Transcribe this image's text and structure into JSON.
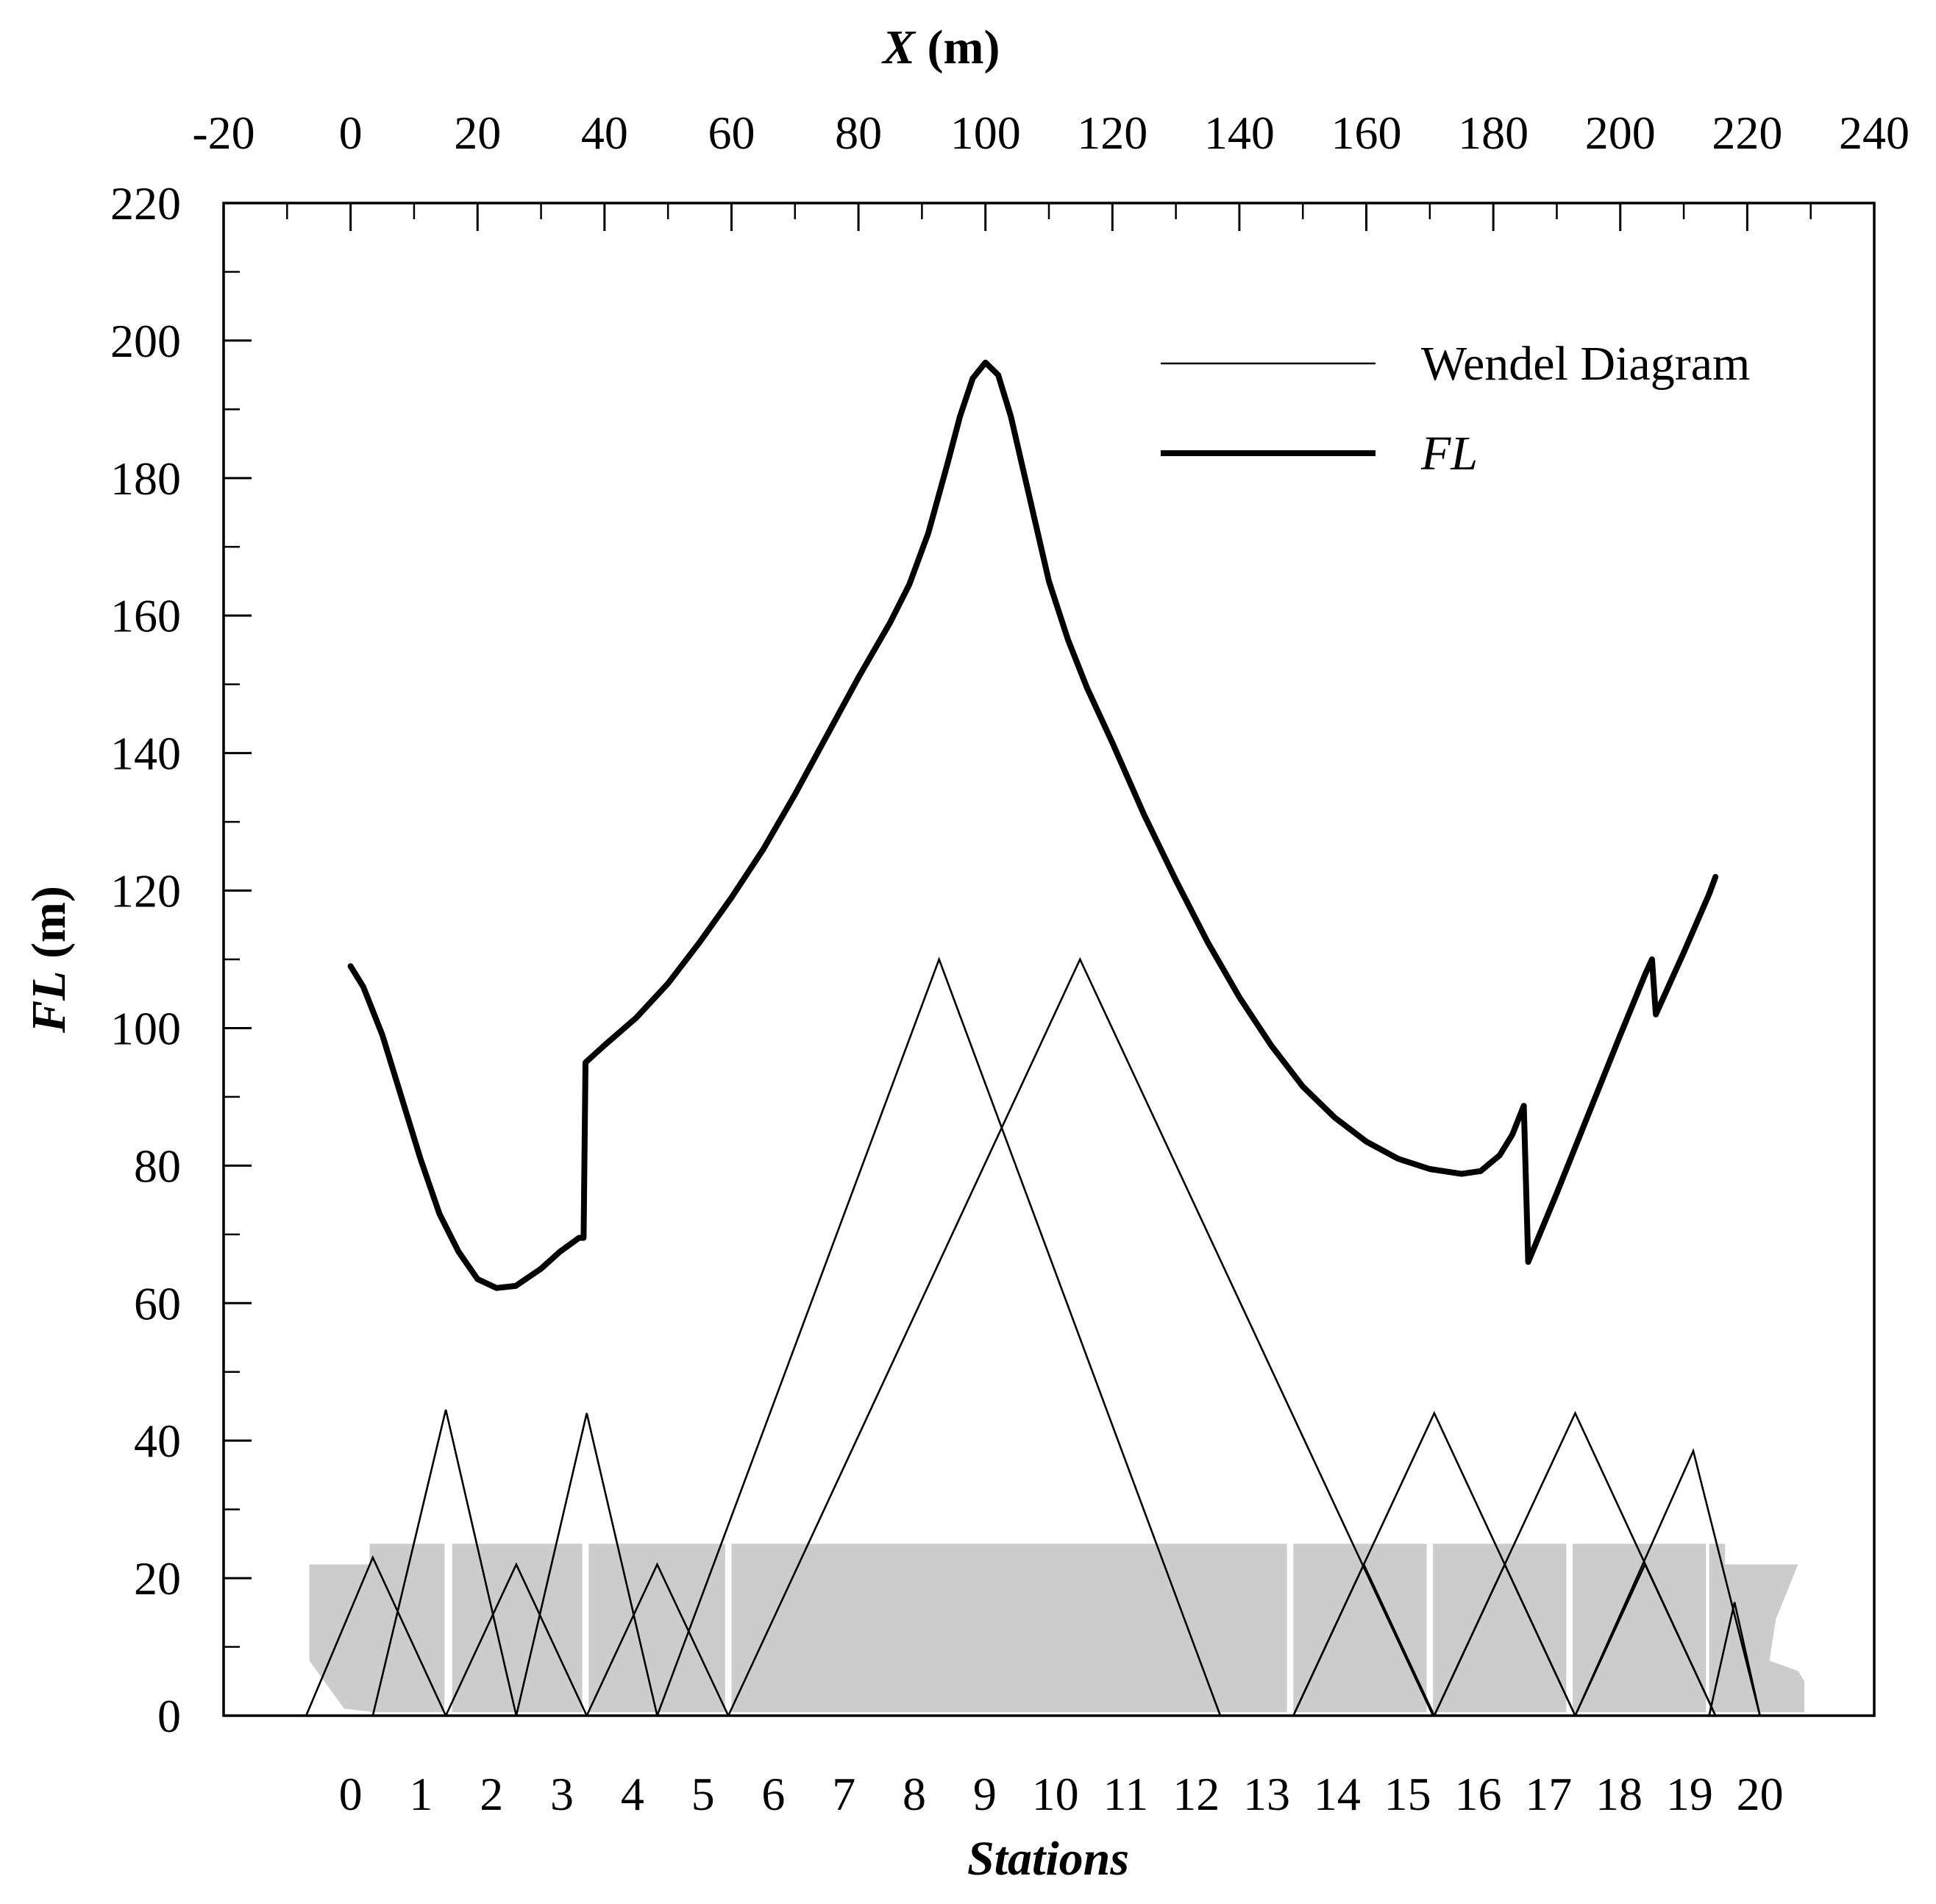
{
  "chart_data": {
    "type": "line",
    "top_axis": {
      "title_var": "X",
      "title_unit": " (m)",
      "range": [
        -20,
        240
      ],
      "ticks": [
        -20,
        0,
        20,
        40,
        60,
        80,
        100,
        120,
        140,
        160,
        180,
        200,
        220,
        240
      ]
    },
    "y_axis": {
      "title_var": "FL",
      "title_unit": " (m)",
      "range": [
        0,
        220
      ],
      "ticks": [
        0,
        20,
        40,
        60,
        80,
        100,
        120,
        140,
        160,
        180,
        200,
        220
      ]
    },
    "bottom_axis": {
      "title": "Stations",
      "ticks": [
        "0",
        "1",
        "2",
        "3",
        "4",
        "5",
        "6",
        "7",
        "8",
        "9",
        "10",
        "11",
        "12",
        "13",
        "14",
        "15",
        "16",
        "17",
        "18",
        "19",
        "20"
      ],
      "station_spacing_m": 11.1
    },
    "legend": {
      "position": "top-right",
      "entries": [
        {
          "label": "Wendel Diagram",
          "style": "thin",
          "italic": false
        },
        {
          "label": "FL",
          "style": "thick",
          "italic": true
        }
      ]
    },
    "series": [
      {
        "name": "FL",
        "points": [
          [
            0,
            109
          ],
          [
            2,
            106
          ],
          [
            5,
            99
          ],
          [
            8,
            90
          ],
          [
            11,
            81
          ],
          [
            14,
            73
          ],
          [
            17,
            67.5
          ],
          [
            20,
            63.5
          ],
          [
            23,
            62.2
          ],
          [
            26,
            62.5
          ],
          [
            30,
            65
          ],
          [
            33,
            67.5
          ],
          [
            36,
            69.5
          ],
          [
            36.7,
            69.5
          ],
          [
            37,
            95
          ],
          [
            40,
            97.5
          ],
          [
            45,
            101.5
          ],
          [
            50,
            106.5
          ],
          [
            55,
            112.5
          ],
          [
            60,
            119
          ],
          [
            65,
            126
          ],
          [
            70,
            134
          ],
          [
            75,
            142.5
          ],
          [
            80,
            151
          ],
          [
            85,
            159
          ],
          [
            88,
            164.5
          ],
          [
            91,
            172
          ],
          [
            94,
            182
          ],
          [
            96,
            189
          ],
          [
            98,
            194.5
          ],
          [
            100,
            196.8
          ],
          [
            102,
            195
          ],
          [
            104,
            189
          ],
          [
            107,
            177
          ],
          [
            110,
            165
          ],
          [
            113,
            156.5
          ],
          [
            116,
            149.5
          ],
          [
            120,
            141.5
          ],
          [
            125,
            131
          ],
          [
            130,
            121.5
          ],
          [
            135,
            112.5
          ],
          [
            140,
            104.5
          ],
          [
            145,
            97.5
          ],
          [
            150,
            91.5
          ],
          [
            155,
            87
          ],
          [
            160,
            83.5
          ],
          [
            165,
            81
          ],
          [
            170,
            79.5
          ],
          [
            175,
            78.8
          ],
          [
            178,
            79.2
          ],
          [
            181,
            81.5
          ],
          [
            183,
            84.5
          ],
          [
            184.8,
            88.7
          ],
          [
            185.5,
            66
          ],
          [
            190,
            76
          ],
          [
            195,
            87.5
          ],
          [
            200,
            99
          ],
          [
            204,
            108
          ],
          [
            205,
            110
          ],
          [
            205.6,
            102
          ],
          [
            210,
            111
          ],
          [
            214,
            119.5
          ],
          [
            215,
            122
          ]
        ]
      },
      {
        "name": "Wendel Diagram",
        "triangles": [
          [
            -7,
            0,
            3.5,
            23,
            15,
            0
          ],
          [
            3.5,
            0,
            15,
            44.5,
            26.1,
            0
          ],
          [
            15,
            0,
            26.1,
            22,
            37.2,
            0
          ],
          [
            26.1,
            0,
            37.2,
            44,
            48.3,
            0
          ],
          [
            37.2,
            0,
            48.3,
            22,
            59.5,
            0
          ],
          [
            48.3,
            0,
            92.7,
            110,
            137,
            0
          ],
          [
            59.5,
            0,
            114.9,
            110,
            170.5,
            0
          ],
          [
            148.5,
            0,
            159.6,
            22,
            170.7,
            0
          ],
          [
            148.5,
            0,
            170.7,
            44,
            192.9,
            0
          ],
          [
            170.7,
            0,
            181.8,
            22,
            192.9,
            0
          ],
          [
            170.7,
            0,
            192.9,
            44,
            215,
            0
          ],
          [
            192.9,
            0,
            203.9,
            22,
            215,
            0
          ],
          [
            192.9,
            0,
            211.5,
            38.5,
            222,
            0
          ],
          [
            214,
            0,
            218,
            16.5,
            222,
            0
          ]
        ]
      }
    ],
    "hull_blocks": [
      {
        "x0": 3,
        "x1": 14.8,
        "top": 25
      },
      {
        "x0": 16,
        "x1": 36.5,
        "top": 25
      },
      {
        "x0": 37.5,
        "x1": 59,
        "top": 25
      },
      {
        "x0": 60,
        "x1": 147.5,
        "top": 25
      },
      {
        "x0": 148.5,
        "x1": 169.5,
        "top": 25
      },
      {
        "x0": 170.5,
        "x1": 191.5,
        "top": 25
      },
      {
        "x0": 192.5,
        "x1": 213.5,
        "top": 25
      }
    ],
    "hull_color": "#cccccc",
    "line_color": "#000000"
  }
}
